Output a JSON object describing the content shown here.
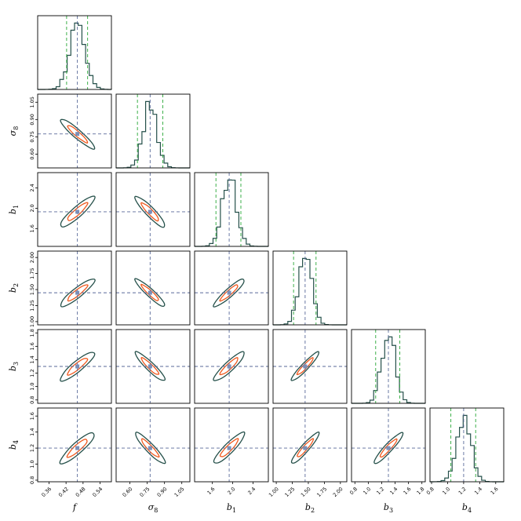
{
  "chart_data": {
    "type": "corner",
    "parameters": [
      {
        "key": "f",
        "symbol": "f",
        "sub": "",
        "range": [
          0.32,
          0.58
        ],
        "ticks": [
          0.36,
          0.42,
          0.48,
          0.54
        ],
        "tick_labels": [
          "0.36",
          "0.42",
          "0.48",
          "0.54"
        ],
        "truth": 0.46,
        "quantiles": [
          0.422,
          0.46,
          0.496
        ],
        "sd": 0.028
      },
      {
        "key": "sigma8",
        "symbol": "σ",
        "sub": "8",
        "range": [
          0.48,
          1.12
        ],
        "ticks": [
          0.6,
          0.75,
          0.9,
          1.05
        ],
        "tick_labels": [
          "0.60",
          "0.75",
          "0.90",
          "1.05"
        ],
        "truth": 0.775,
        "quantiles": [
          0.665,
          0.775,
          0.885
        ],
        "sd": 0.06
      },
      {
        "key": "b1",
        "symbol": "b",
        "sub": "1",
        "range": [
          1.25,
          2.7
        ],
        "ticks": [
          1.6,
          2.0,
          2.4
        ],
        "tick_labels": [
          "1.6",
          "2.0",
          "2.4"
        ],
        "truth": 1.93,
        "quantiles": [
          1.67,
          1.93,
          2.16
        ],
        "sd": 0.14
      },
      {
        "key": "b2",
        "symbol": "b",
        "sub": "2",
        "range": [
          0.95,
          2.1
        ],
        "ticks": [
          1.0,
          1.25,
          1.5,
          1.75,
          2.0
        ],
        "tick_labels": [
          "1.00",
          "1.25",
          "1.50",
          "1.75",
          "2.00"
        ],
        "truth": 1.45,
        "quantiles": [
          1.27,
          1.45,
          1.62
        ],
        "sd": 0.1
      },
      {
        "key": "b3",
        "symbol": "b",
        "sub": "3",
        "range": [
          0.75,
          1.85
        ],
        "ticks": [
          0.8,
          1.0,
          1.2,
          1.4,
          1.6,
          1.8
        ],
        "tick_labels": [
          "0.8",
          "1.0",
          "1.2",
          "1.4",
          "1.6",
          "1.8"
        ],
        "truth": 1.3,
        "quantiles": [
          1.11,
          1.3,
          1.47
        ],
        "sd": 0.1
      },
      {
        "key": "b4",
        "symbol": "b",
        "sub": "4",
        "range": [
          0.78,
          1.7
        ],
        "ticks": [
          0.8,
          1.0,
          1.2,
          1.4,
          1.6
        ],
        "tick_labels": [
          "0.8",
          "1.0",
          "1.2",
          "1.4",
          "1.6"
        ],
        "truth": 1.2,
        "quantiles": [
          1.04,
          1.2,
          1.35
        ],
        "sd": 0.09
      }
    ],
    "correlations": [
      [
        1,
        -0.93,
        0.9,
        0.9,
        0.89,
        0.89
      ],
      [
        -0.93,
        1,
        -0.91,
        -0.93,
        -0.92,
        -0.92
      ],
      [
        0.9,
        -0.91,
        1,
        0.92,
        0.9,
        0.9
      ],
      [
        0.9,
        -0.93,
        0.92,
        1,
        0.94,
        0.93
      ],
      [
        0.89,
        -0.92,
        0.9,
        0.94,
        1,
        0.93
      ],
      [
        0.89,
        -0.92,
        0.9,
        0.93,
        0.93,
        1
      ]
    ],
    "histogram_bins": 20,
    "contour_levels": [
      "inner",
      "outer"
    ],
    "colors": {
      "histogram": "#25504a",
      "quantile_lines": "#3db04a",
      "truth_lines": "#5a6a9a",
      "truth_marker": "#7b8fb8",
      "outer_contour": "#25504a",
      "inner_contour": "#f0591e"
    }
  }
}
